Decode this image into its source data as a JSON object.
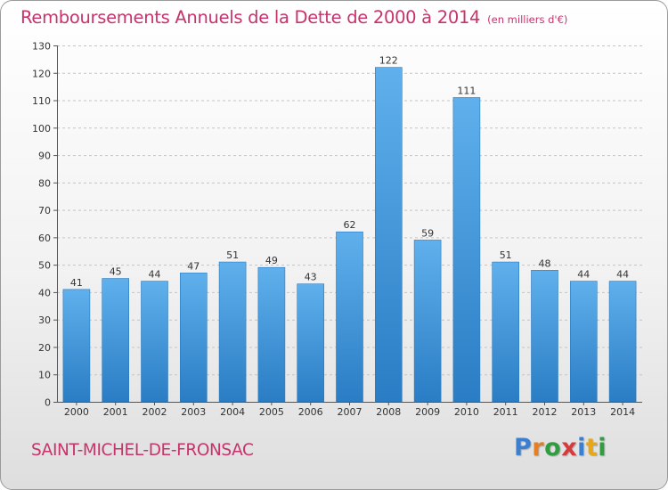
{
  "chart_data": {
    "type": "bar",
    "title": "Remboursements Annuels de la Dette de 2000 à 2014",
    "subtitle": "(en milliers d'€)",
    "categories": [
      "2000",
      "2001",
      "2002",
      "2003",
      "2004",
      "2005",
      "2006",
      "2007",
      "2008",
      "2009",
      "2010",
      "2011",
      "2012",
      "2013",
      "2014"
    ],
    "values": [
      41,
      45,
      44,
      47,
      51,
      49,
      43,
      62,
      122,
      59,
      111,
      51,
      48,
      44,
      44
    ],
    "ylim": [
      0,
      130
    ],
    "yticks": [
      0,
      10,
      20,
      30,
      40,
      50,
      60,
      70,
      80,
      90,
      100,
      110,
      120,
      130
    ],
    "xlabel": "",
    "ylabel": "",
    "grid": "horizontal-dashed",
    "bar_color": "#4a9fe0"
  },
  "commune": "SAINT-MICHEL-DE-FRONSAC",
  "logo": {
    "letters": [
      "P",
      "r",
      "o",
      "x",
      "i",
      "t",
      "i"
    ],
    "colors": [
      "#3a7fd0",
      "#e67e22",
      "#2e9e3e",
      "#d63a3a",
      "#3a7fd0",
      "#e6a817",
      "#2e9e3e"
    ]
  },
  "colors": {
    "accent": "#c8336b"
  }
}
